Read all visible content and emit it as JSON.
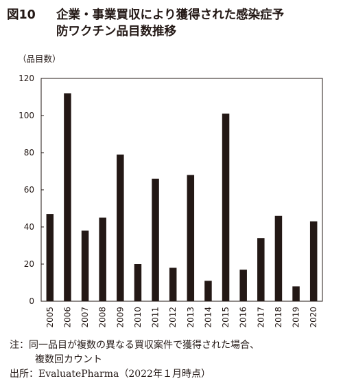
{
  "figure": {
    "number": "図10",
    "title_line1": "企業・事業買収により獲得された感染症予",
    "title_line2": "防ワクチン品目数推移"
  },
  "chart_data": {
    "type": "bar",
    "unit_label": "（品目数）",
    "categories": [
      "2005",
      "2006",
      "2007",
      "2008",
      "2009",
      "2010",
      "2011",
      "2012",
      "2013",
      "2014",
      "2015",
      "2016",
      "2017",
      "2018",
      "2019",
      "2020"
    ],
    "values": [
      47,
      112,
      38,
      45,
      79,
      20,
      66,
      18,
      68,
      11,
      101,
      17,
      34,
      46,
      8,
      43
    ],
    "ylim": [
      0,
      120
    ],
    "yticks": [
      0,
      20,
      40,
      60,
      80,
      100,
      120
    ],
    "bar_color": "#231815",
    "grid": false
  },
  "notes": {
    "note_line1": "注：同一品目が複数の異なる買収案件で獲得された場合、",
    "note_line2": "複数回カウント",
    "source": "出所：EvaluatePharma（2022年１月時点）"
  }
}
